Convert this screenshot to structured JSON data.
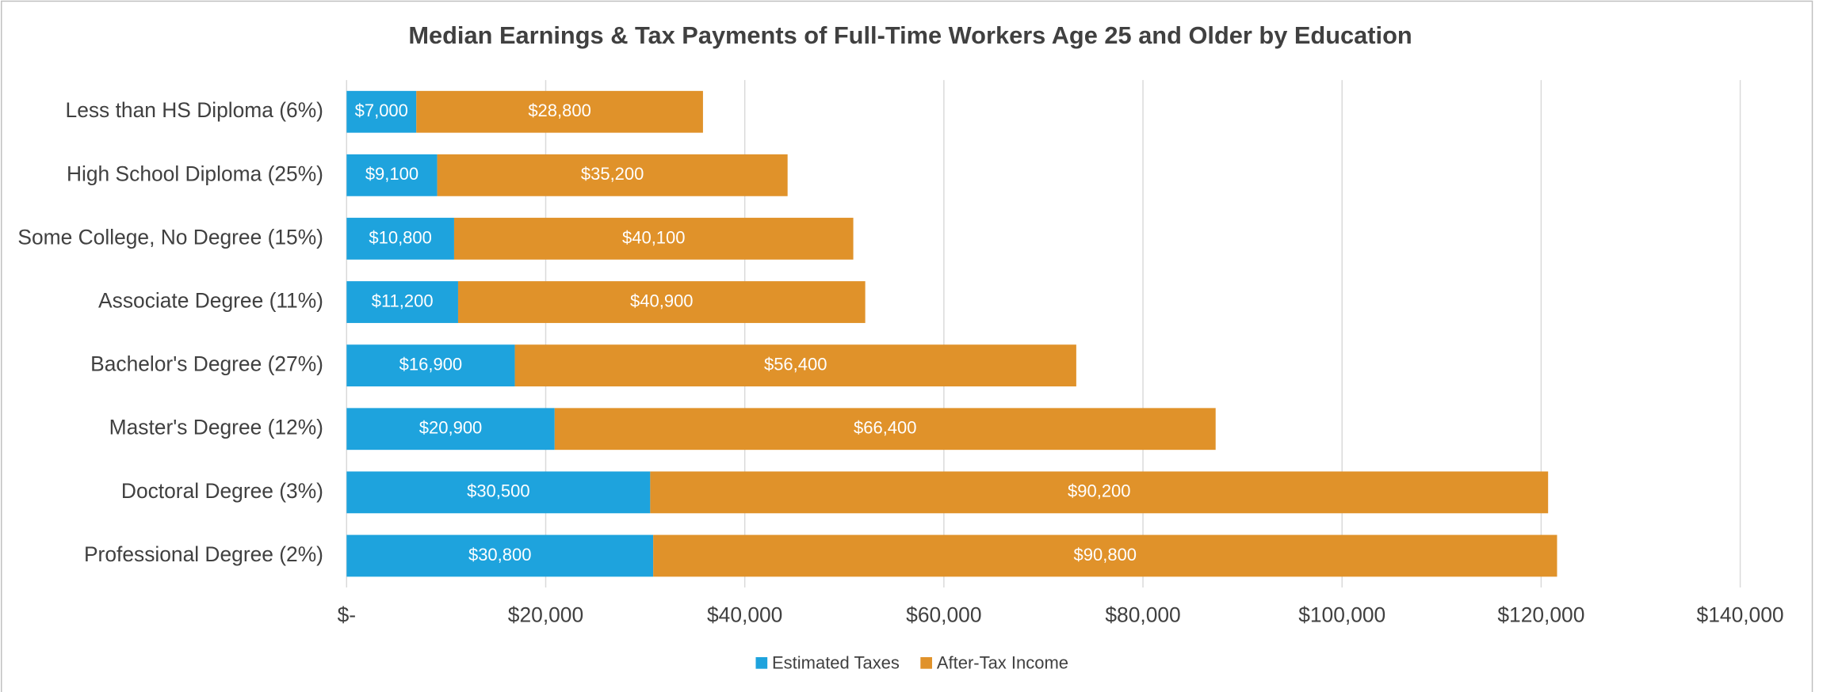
{
  "chart_data": {
    "type": "stacked-bar-horizontal",
    "title": "Median Earnings & Tax Payments of Full-Time Workers Age 25 and Older by Education",
    "categories": [
      "Less than HS Diploma (6%)",
      "High School Diploma (25%)",
      "Some College, No Degree (15%)",
      "Associate Degree (11%)",
      "Bachelor's Degree (27%)",
      "Master's Degree (12%)",
      "Doctoral Degree (3%)",
      "Professional Degree (2%)"
    ],
    "series": [
      {
        "name": "Estimated Taxes",
        "color": "#1ea3dd",
        "values": [
          7000,
          9100,
          10800,
          11200,
          16900,
          20900,
          30500,
          30800
        ],
        "value_labels": [
          "$7,000",
          "$9,100",
          "$10,800",
          "$11,200",
          "$16,900",
          "$20,900",
          "$30,500",
          "$30,800"
        ]
      },
      {
        "name": "After-Tax Income",
        "color": "#e0922a",
        "values": [
          28800,
          35200,
          40100,
          40900,
          56400,
          66400,
          90200,
          90800
        ],
        "value_labels": [
          "$28,800",
          "$35,200",
          "$40,100",
          "$40,900",
          "$56,400",
          "$66,400",
          "$90,200",
          "$90,800"
        ]
      }
    ],
    "xlim": [
      0,
      140000
    ],
    "xticks": [
      {
        "value": 0,
        "label": "$-"
      },
      {
        "value": 20000,
        "label": "$20,000"
      },
      {
        "value": 40000,
        "label": "$40,000"
      },
      {
        "value": 60000,
        "label": "$60,000"
      },
      {
        "value": 80000,
        "label": "$80,000"
      },
      {
        "value": 100000,
        "label": "$100,000"
      },
      {
        "value": 120000,
        "label": "$120,000"
      },
      {
        "value": 140000,
        "label": "$140,000"
      }
    ],
    "grid": true,
    "legend": "bottom"
  }
}
